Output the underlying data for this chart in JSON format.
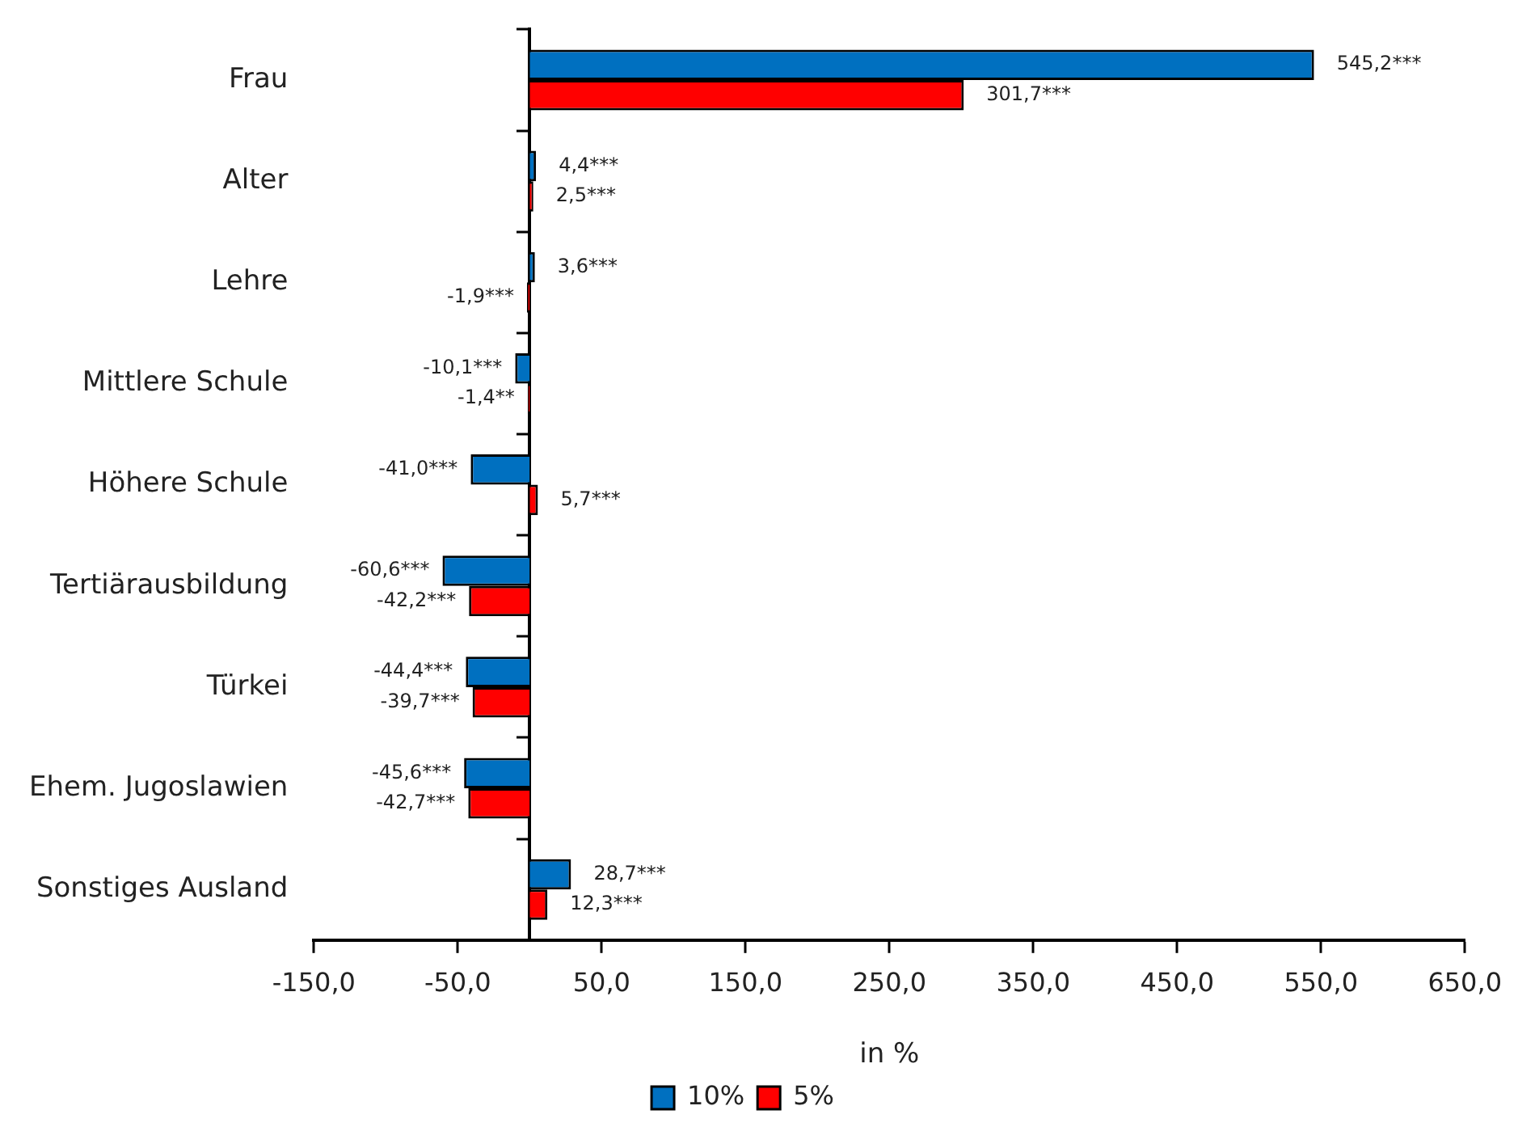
{
  "chart_data": {
    "type": "bar",
    "orientation": "horizontal",
    "xlabel": "in %",
    "categories": [
      "Frau",
      "Alter",
      "Lehre",
      "Mittlere Schule",
      "Höhere Schule",
      "Tertiärausbildung",
      "Türkei",
      "Ehem. Jugoslawien",
      "Sonstiges Ausland"
    ],
    "series": [
      {
        "name": "10%",
        "color": "#0070c0",
        "values": [
          545.2,
          4.4,
          3.6,
          -10.1,
          -41.0,
          -60.6,
          -44.4,
          -45.6,
          28.7
        ],
        "value_labels": [
          "545,2***",
          "4,4***",
          "3,6***",
          "-10,1***",
          "-41,0***",
          "-60,6***",
          "-44,4***",
          "-45,6***",
          "28,7***"
        ]
      },
      {
        "name": "5%",
        "color": "#ff0000",
        "values": [
          301.7,
          2.5,
          -1.9,
          -1.4,
          5.7,
          -42.2,
          -39.7,
          -42.7,
          12.3
        ],
        "value_labels": [
          "301,7***",
          "2,5***",
          "-1,9***",
          "-1,4**",
          "5,7***",
          "-42,2***",
          "-39,7***",
          "-42,7***",
          "12,3***"
        ]
      }
    ],
    "xlim": [
      -150,
      650
    ],
    "xticks": [
      {
        "value": -150,
        "label": "-150,0"
      },
      {
        "value": -50,
        "label": "-50,0"
      },
      {
        "value": 50,
        "label": "50,0"
      },
      {
        "value": 150,
        "label": "150,0"
      },
      {
        "value": 250,
        "label": "250,0"
      },
      {
        "value": 350,
        "label": "350,0"
      },
      {
        "value": 450,
        "label": "450,0"
      },
      {
        "value": 550,
        "label": "550,0"
      },
      {
        "value": 650,
        "label": "650,0"
      }
    ],
    "grid": false,
    "legend": "bottom"
  }
}
